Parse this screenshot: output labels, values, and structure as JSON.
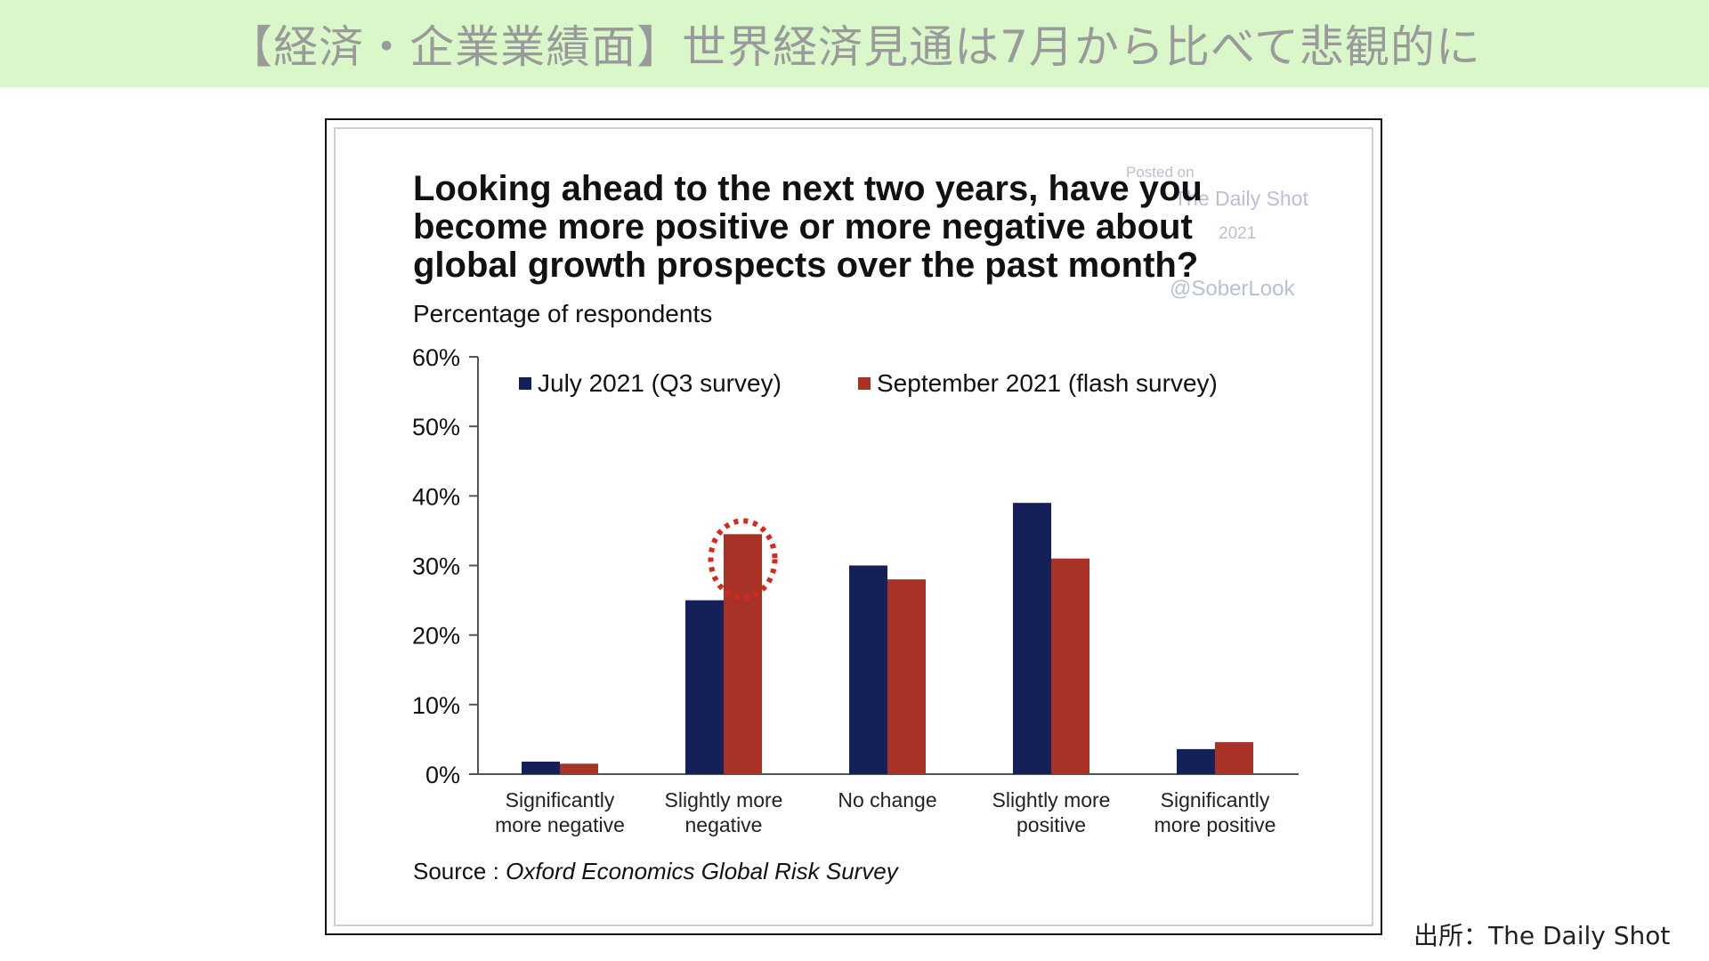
{
  "header": {
    "title": "【経済・企業業績面】世界経済見通は7月から比べて悲観的に"
  },
  "footer": {
    "credit": "出所：The Daily Shot"
  },
  "watermark": {
    "line1": "Posted on",
    "line2": "The Daily Shot",
    "line3": "2021",
    "line4": "@SoberLook"
  },
  "highlight": {
    "category": "Slightly more negative",
    "series": "September 2021 (flash survey)",
    "color": "#d42a1e",
    "style": "dotted-circle"
  },
  "chart_data": {
    "type": "bar",
    "title_lines": [
      "Looking ahead to the next two years, have you",
      "become more positive or more negative about",
      "global growth prospects over the past month?"
    ],
    "subtitle": "Percentage of respondents",
    "source_prefix": "Source : ",
    "source_name": "Oxford Economics Global Risk Survey",
    "categories": [
      [
        "Significantly",
        "more negative"
      ],
      [
        "Slightly more",
        "negative"
      ],
      [
        "No change"
      ],
      [
        "Slightly more",
        "positive"
      ],
      [
        "Significantly",
        "more positive"
      ]
    ],
    "series": [
      {
        "name": "July 2021 (Q3 survey)",
        "color": "#152059",
        "values": [
          1.8,
          25,
          30,
          39,
          3.6
        ]
      },
      {
        "name": "September 2021 (flash survey)",
        "color": "#a83226",
        "values": [
          1.5,
          34.5,
          28,
          31,
          4.6
        ]
      }
    ],
    "ylim": [
      0,
      60
    ],
    "yticks": [
      0,
      10,
      20,
      30,
      40,
      50,
      60
    ],
    "ytick_labels": [
      "0%",
      "10%",
      "20%",
      "30%",
      "40%",
      "50%",
      "60%"
    ],
    "grid": false,
    "legend_position": "top"
  }
}
